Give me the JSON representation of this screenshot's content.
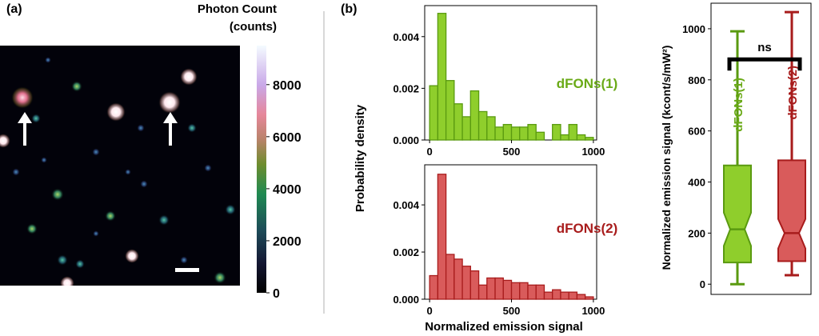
{
  "panel_a": {
    "label": "(a)",
    "colorbar_title_line1": "Photon Count",
    "colorbar_title_line2": "(counts)",
    "colorbar_ticks": [
      "8000",
      "6000",
      "4000",
      "2000",
      "0"
    ]
  },
  "panel_b": {
    "label": "(b)",
    "shared_ylabel": "Probability density",
    "shared_xlabel": "Normalized emission signal",
    "significance": "ns"
  },
  "colors": {
    "series1_fill": "#8fce2c",
    "series1_edge": "#5a9a10",
    "series1_text": "#6aaa17",
    "series2_fill": "#d95b5b",
    "series2_edge": "#a81c1c",
    "series2_text": "#a81c1c"
  },
  "chart_data": [
    {
      "type": "heatmap",
      "description_kind": "fluorescence image",
      "colorbar_range": [
        0,
        9500
      ],
      "colorbar_ticks": [
        0,
        2000,
        4000,
        6000,
        8000
      ]
    },
    {
      "type": "bar",
      "series_name": "dFONs(1)",
      "bin_edges": [
        0,
        50,
        100,
        150,
        200,
        250,
        300,
        350,
        400,
        450,
        500,
        550,
        600,
        650,
        700,
        750,
        800,
        850,
        900,
        950,
        1000
      ],
      "values": [
        0.0021,
        0.0049,
        0.0023,
        0.0014,
        0.0009,
        0.0019,
        0.0011,
        0.0009,
        0.0005,
        0.0006,
        0.0005,
        0.0005,
        0.0006,
        0.0003,
        0.0,
        0.0006,
        0.0002,
        0.0006,
        0.0002,
        0.0001
      ],
      "xlim": [
        -30,
        1020
      ],
      "ylim": [
        0,
        0.0052
      ],
      "yticks": [
        0.0,
        0.002,
        0.004
      ],
      "ytick_labels": [
        "0.000",
        "0.002",
        "0.004"
      ],
      "xticks": [
        0,
        500,
        1000
      ]
    },
    {
      "type": "bar",
      "series_name": "dFONs(2)",
      "bin_edges": [
        0,
        50,
        100,
        150,
        200,
        250,
        300,
        350,
        400,
        450,
        500,
        550,
        600,
        650,
        700,
        750,
        800,
        850,
        900,
        950,
        1000
      ],
      "values": [
        0.001,
        0.0053,
        0.0019,
        0.0017,
        0.0014,
        0.0012,
        0.0006,
        0.0009,
        0.0009,
        0.0008,
        0.0007,
        0.0007,
        0.0006,
        0.0006,
        0.0003,
        0.0004,
        0.0003,
        0.0003,
        0.0002,
        0.0001
      ],
      "xlim": [
        -30,
        1020
      ],
      "ylim": [
        0,
        0.0057
      ],
      "yticks": [
        0.0,
        0.002,
        0.004
      ],
      "ytick_labels": [
        "0.000",
        "0.002",
        "0.004"
      ],
      "xticks": [
        0,
        500,
        1000
      ]
    },
    {
      "type": "box",
      "ylabel": "Normalized emission signal (kcont/s/mW²)",
      "ylim": [
        -40,
        1100
      ],
      "yticks": [
        0,
        200,
        400,
        600,
        800,
        1000
      ],
      "boxes": [
        {
          "name": "dFONs(1)",
          "whisker_low": 0,
          "q1": 85,
          "median": 215,
          "q3": 465,
          "whisker_high": 990,
          "notch_low": 150,
          "notch_high": 280
        },
        {
          "name": "dFONs(2)",
          "whisker_low": 35,
          "q1": 90,
          "median": 200,
          "q3": 485,
          "whisker_high": 1065,
          "notch_low": 140,
          "notch_high": 255
        }
      ],
      "significance_level": 880
    }
  ]
}
